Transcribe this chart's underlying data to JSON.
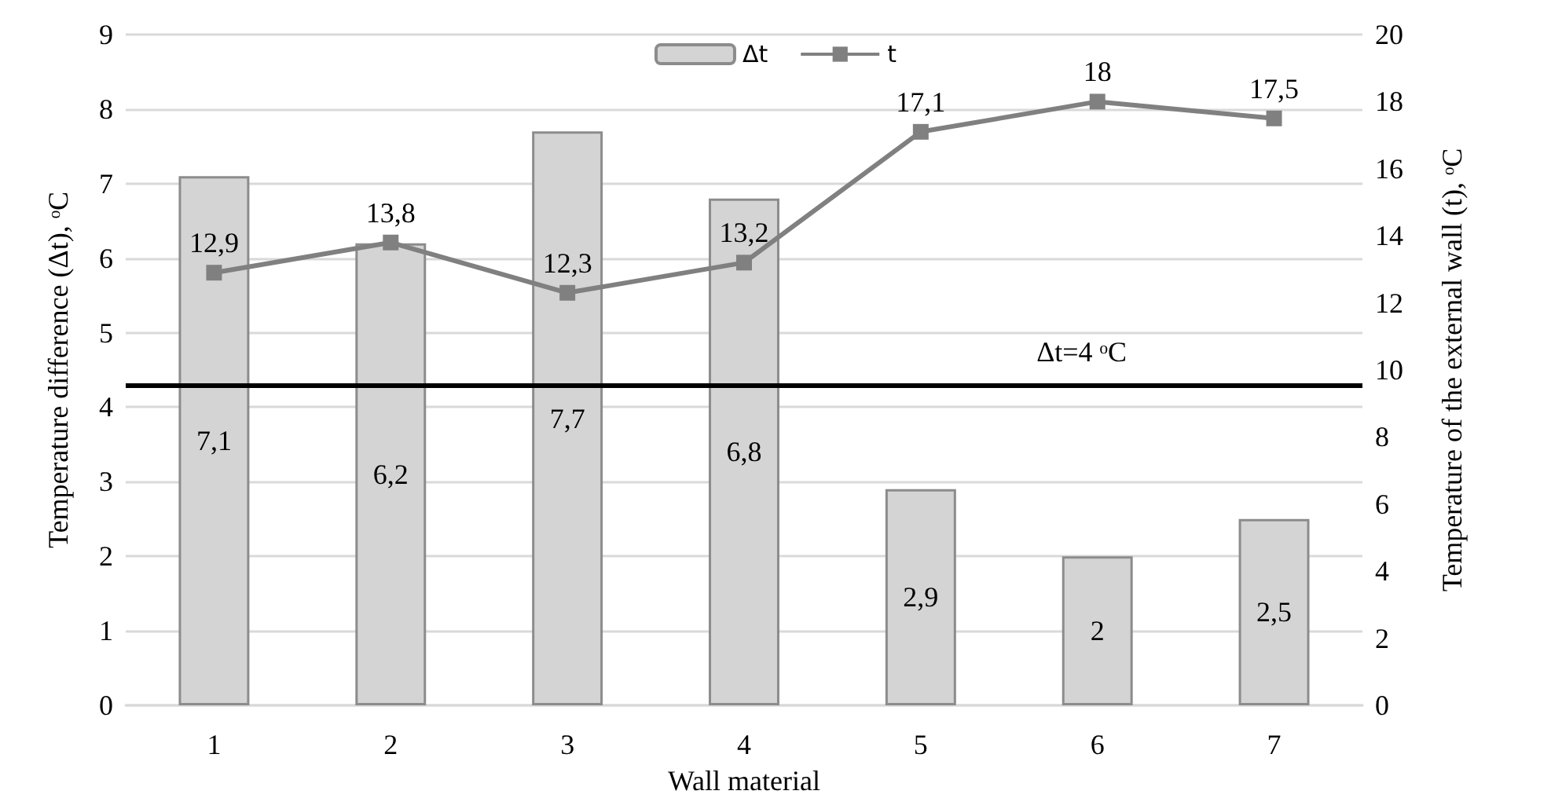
{
  "chart_data": {
    "type": "bar",
    "xlabel": "Wall material",
    "ylabel": "Temperature difference (Δt), ᵒC",
    "y2label": "Temperature of the external wall (t), ᵒC",
    "categories": [
      "1",
      "2",
      "3",
      "4",
      "5",
      "6",
      "7"
    ],
    "series": [
      {
        "name": "Δt",
        "color": "#d4d4d4",
        "values": [
          7.1,
          6.2,
          7.7,
          6.8,
          2.9,
          2,
          2.5
        ],
        "value_labels": [
          "7,1",
          "6,2",
          "7,7",
          "6,8",
          "2,9",
          "2",
          "2,5"
        ]
      },
      {
        "name": "t",
        "type": "line",
        "axis": "y2",
        "color": "#808080",
        "marker": "square",
        "values": [
          12.9,
          13.8,
          12.3,
          13.2,
          17.1,
          18,
          17.5
        ],
        "value_labels": [
          "12,9",
          "13,8",
          "12,3",
          "13,2",
          "17,1",
          "18",
          "17,5"
        ]
      }
    ],
    "ylim": [
      0,
      9
    ],
    "yticks": [
      0,
      1,
      2,
      3,
      4,
      5,
      6,
      7,
      8,
      9
    ],
    "y2lim": [
      0,
      20
    ],
    "y2ticks": [
      0,
      2,
      4,
      6,
      8,
      10,
      12,
      14,
      16,
      18,
      20
    ],
    "ref_lines": [
      {
        "axis": "y",
        "value": 4.3,
        "label": "Δt=4 ᵒC",
        "color": "#000000"
      }
    ],
    "grid": "y",
    "legend": "top"
  }
}
